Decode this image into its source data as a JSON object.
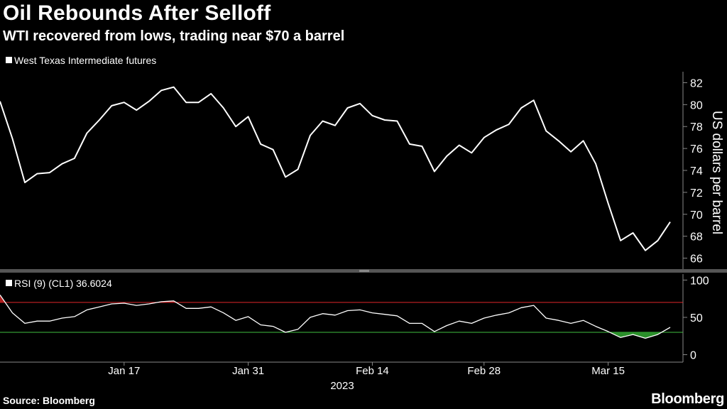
{
  "header": {
    "title": "Oil Rebounds After Selloff",
    "subtitle": "WTI recovered from lows, trading near $70 a barrel"
  },
  "footer": {
    "source": "Source: Bloomberg",
    "brand": "Bloomberg"
  },
  "colors": {
    "background": "#000000",
    "line": "#ffffff",
    "overbought": "#e0262b",
    "oversold": "#3fbf3f",
    "divider": "#555555"
  },
  "chart_data": [
    {
      "type": "line",
      "title": "WTI recovered from lows, trading near $70 a barrel",
      "legend": "West Texas Intermediate futures",
      "legend_position": "top-left",
      "ylabel": "US dollars per barrel",
      "ylim": [
        65,
        83
      ],
      "yticks": [
        66,
        68,
        70,
        72,
        74,
        76,
        78,
        80,
        82
      ],
      "x_tick_labels": [
        "Jan 17",
        "Jan 31",
        "Feb 14",
        "Feb 28",
        "Mar 15"
      ],
      "x_tick_index": [
        10,
        20,
        30,
        39,
        49
      ],
      "x_year_label": "2023",
      "series": [
        {
          "name": "West Texas Intermediate futures",
          "values": [
            80.3,
            76.9,
            72.9,
            73.7,
            73.8,
            74.6,
            75.1,
            77.4,
            78.6,
            79.9,
            80.2,
            79.5,
            80.3,
            81.3,
            81.6,
            80.2,
            80.2,
            81.0,
            79.7,
            78.0,
            78.9,
            76.4,
            75.9,
            73.4,
            74.1,
            77.2,
            78.5,
            78.1,
            79.7,
            80.1,
            79.0,
            78.6,
            78.5,
            76.4,
            76.2,
            73.9,
            75.3,
            76.3,
            75.6,
            77.0,
            77.7,
            78.2,
            79.7,
            80.4,
            77.6,
            76.7,
            75.7,
            76.7,
            74.6,
            71.0,
            67.6,
            68.3,
            66.7,
            67.6,
            69.3
          ]
        }
      ]
    },
    {
      "type": "line",
      "title": "RSI",
      "legend": "RSI (9) (CL1) 36.6024",
      "legend_position": "top-left",
      "ylim": [
        -10,
        108
      ],
      "yticks": [
        0,
        50,
        100
      ],
      "thresholds": {
        "overbought": 70,
        "oversold": 30
      },
      "series": [
        {
          "name": "RSI (9) (CL1)",
          "values": [
            80,
            56,
            42,
            45,
            45,
            49,
            51,
            60,
            64,
            68,
            69,
            66,
            68,
            71,
            72,
            62,
            62,
            64,
            56,
            46,
            51,
            40,
            38,
            30,
            34,
            50,
            55,
            53,
            59,
            60,
            56,
            54,
            52,
            42,
            42,
            31,
            39,
            45,
            42,
            49,
            53,
            56,
            63,
            66,
            49,
            46,
            42,
            46,
            38,
            31,
            23,
            27,
            22,
            27,
            36.6
          ]
        }
      ]
    }
  ]
}
